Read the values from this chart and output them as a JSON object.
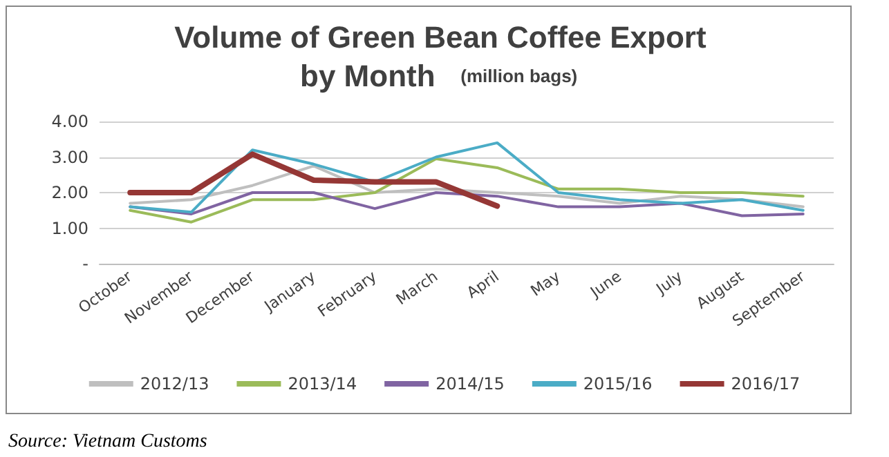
{
  "chart_data": {
    "type": "line",
    "title": "Volume of Green Bean Coffee Export by Month",
    "subtitle": "(million bags)",
    "categories": [
      "October",
      "November",
      "December",
      "January",
      "February",
      "March",
      "April",
      "May",
      "June",
      "July",
      "August",
      "September"
    ],
    "series": [
      {
        "name": "2012/13",
        "color": "#bfbfbf",
        "values": [
          1.7,
          1.8,
          2.2,
          2.75,
          2.0,
          2.1,
          2.0,
          1.9,
          1.7,
          1.9,
          1.8,
          1.6
        ]
      },
      {
        "name": "2013/14",
        "color": "#9bbb59",
        "values": [
          1.5,
          1.17,
          1.8,
          1.8,
          2.0,
          2.95,
          2.7,
          2.1,
          2.1,
          2.0,
          2.0,
          1.9
        ]
      },
      {
        "name": "2014/15",
        "color": "#8064a2",
        "values": [
          1.6,
          1.4,
          2.0,
          2.0,
          1.55,
          2.0,
          1.9,
          1.6,
          1.6,
          1.7,
          1.35,
          1.4
        ]
      },
      {
        "name": "2015/16",
        "color": "#4bacc6",
        "values": [
          1.6,
          1.45,
          3.2,
          2.8,
          2.3,
          3.0,
          3.4,
          2.0,
          1.8,
          1.7,
          1.8,
          1.5
        ]
      },
      {
        "name": "2016/17",
        "color": "#953735",
        "values": [
          2.0,
          2.0,
          3.08,
          2.35,
          2.3,
          2.3,
          1.62,
          null,
          null,
          null,
          null,
          null
        ]
      }
    ],
    "ylim": [
      0,
      4
    ],
    "yticks": [
      {
        "value": 0,
        "label": "-"
      },
      {
        "value": 1,
        "label": "1.00"
      },
      {
        "value": 2,
        "label": "2.00"
      },
      {
        "value": 3,
        "label": "3.00"
      },
      {
        "value": 4,
        "label": "4.00"
      }
    ],
    "grid": "y",
    "legend": "bottom",
    "marker": "none",
    "line_style": "solid",
    "annotations": [
      "Source: Vietnam Customs"
    ]
  }
}
